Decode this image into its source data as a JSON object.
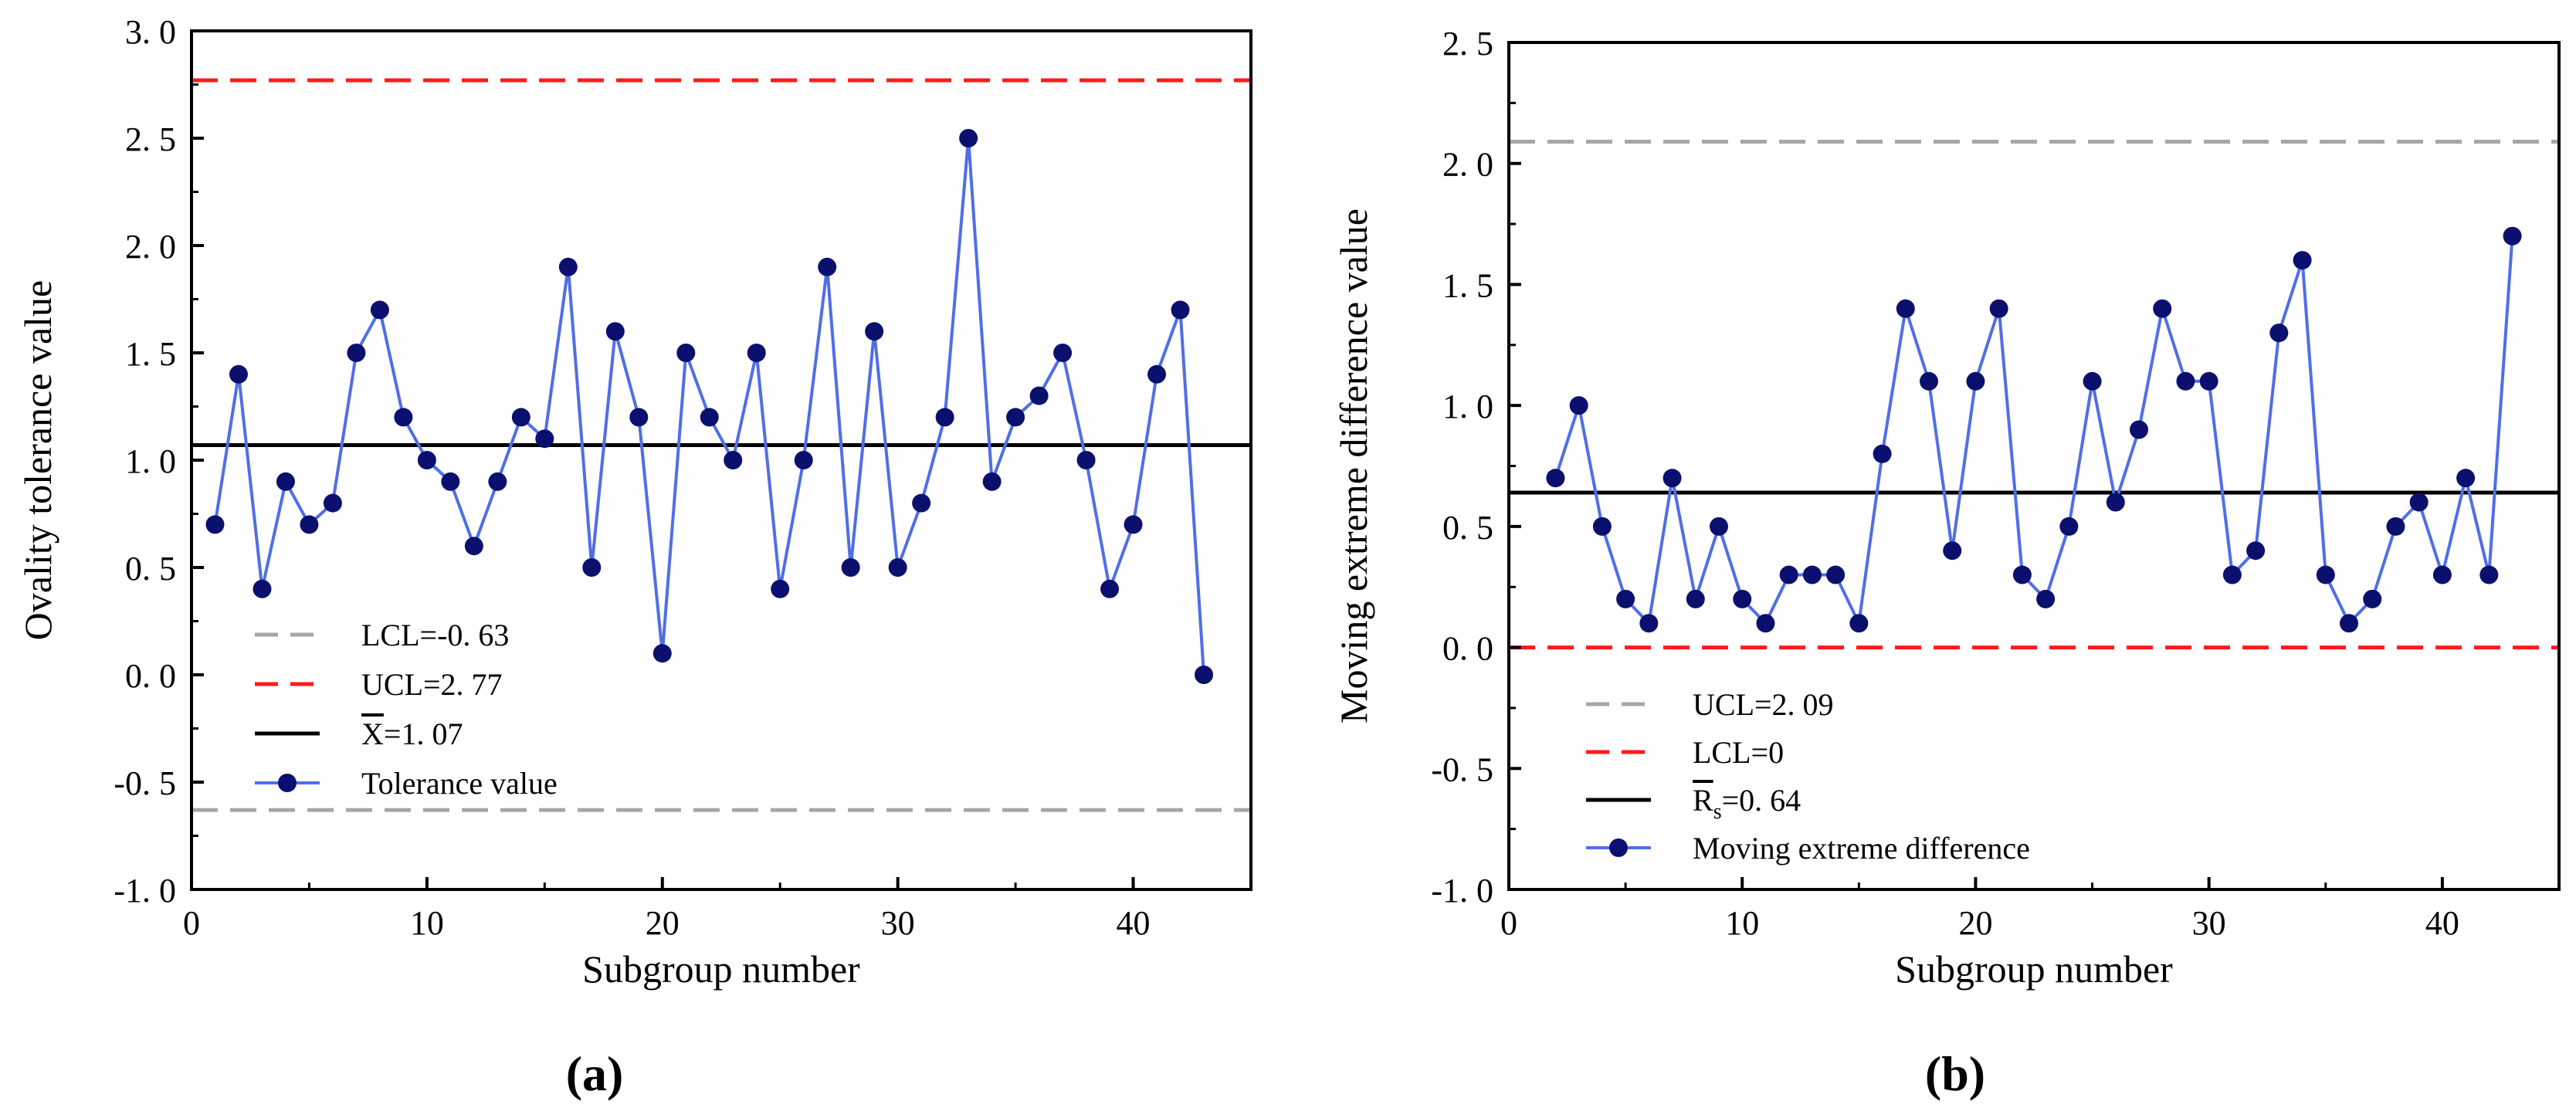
{
  "chart_data": [
    {
      "type": "line",
      "panel_label": "(a)",
      "xlabel": "Subgroup number",
      "ylabel": "Ovality tolerance value",
      "xlim": [
        0,
        45
      ],
      "ylim": [
        -1.0,
        3.0
      ],
      "x_ticks": [
        0,
        10,
        20,
        30,
        40
      ],
      "x_tick_labels": [
        "0",
        "10",
        "20",
        "30",
        "40"
      ],
      "y_ticks": [
        -1.0,
        -0.5,
        0.0,
        0.5,
        1.0,
        1.5,
        2.0,
        2.5,
        3.0
      ],
      "y_tick_labels": [
        "-1. 0",
        "-0. 5",
        "0. 0",
        "0. 5",
        "1. 0",
        "1. 5",
        "2. 0",
        "2. 5",
        "3. 0"
      ],
      "legend_position": "lower-left",
      "reference_lines": [
        {
          "name": "LCL",
          "label": "LCL=-0. 63",
          "value": -0.63,
          "color": "#a6a6a6",
          "dashed": true
        },
        {
          "name": "UCL",
          "label": "UCL=2. 77",
          "value": 2.77,
          "color": "#ff1a1a",
          "dashed": true
        },
        {
          "name": "mean",
          "label_symbol": "X",
          "label_rest": "=1. 07",
          "value": 1.07,
          "color": "#000000",
          "dashed": false
        }
      ],
      "series": [
        {
          "name": "Tolerance value",
          "line_color": "#4f6ee8",
          "marker_color": "#0b0f6e",
          "x": [
            1,
            2,
            3,
            4,
            5,
            6,
            7,
            8,
            9,
            10,
            11,
            12,
            13,
            14,
            15,
            16,
            17,
            18,
            19,
            20,
            21,
            22,
            23,
            24,
            25,
            26,
            27,
            28,
            29,
            30,
            31,
            32,
            33,
            34,
            35,
            36,
            37,
            38,
            39,
            40,
            41,
            42,
            43
          ],
          "y": [
            0.7,
            1.4,
            0.4,
            0.9,
            0.7,
            0.8,
            1.5,
            1.7,
            1.2,
            1.0,
            0.9,
            0.6,
            0.9,
            1.2,
            1.1,
            1.9,
            0.5,
            1.6,
            1.2,
            0.1,
            1.5,
            1.2,
            1.0,
            1.5,
            0.4,
            1.0,
            1.9,
            0.5,
            1.6,
            0.5,
            0.8,
            1.2,
            2.5,
            0.9,
            1.2,
            1.3,
            1.5,
            1.0,
            0.4,
            0.7,
            1.4,
            1.7,
            0.0
          ]
        }
      ]
    },
    {
      "type": "line",
      "panel_label": "(b)",
      "xlabel": "Subgroup number",
      "ylabel": "Moving extreme difference value",
      "xlim": [
        0,
        45
      ],
      "ylim": [
        -1.0,
        2.5
      ],
      "x_ticks": [
        0,
        10,
        20,
        30,
        40
      ],
      "x_tick_labels": [
        "0",
        "10",
        "20",
        "30",
        "40"
      ],
      "y_ticks": [
        -1.0,
        -0.5,
        0.0,
        0.5,
        1.0,
        1.5,
        2.0,
        2.5
      ],
      "y_tick_labels": [
        "-1. 0",
        "-0. 5",
        "0. 0",
        "0. 5",
        "1. 0",
        "1. 5",
        "2. 0",
        "2. 5"
      ],
      "legend_position": "lower-left",
      "reference_lines": [
        {
          "name": "UCL",
          "label": "UCL=2. 09",
          "value": 2.09,
          "color": "#a6a6a6",
          "dashed": true
        },
        {
          "name": "LCL",
          "label": "LCL=0",
          "value": 0.0,
          "color": "#ff1a1a",
          "dashed": true
        },
        {
          "name": "mean",
          "label_symbol": "R",
          "label_sub": "s",
          "label_rest": "=0. 64",
          "value": 0.64,
          "color": "#000000",
          "dashed": false
        }
      ],
      "series": [
        {
          "name": "Moving extreme difference",
          "line_color": "#4f6ee8",
          "marker_color": "#0b0f6e",
          "x": [
            2,
            3,
            4,
            5,
            6,
            7,
            8,
            9,
            10,
            11,
            12,
            13,
            14,
            15,
            16,
            17,
            18,
            19,
            20,
            21,
            22,
            23,
            24,
            25,
            26,
            27,
            28,
            29,
            30,
            31,
            32,
            33,
            34,
            35,
            36,
            37,
            38,
            39,
            40,
            41,
            42,
            43
          ],
          "y": [
            0.7,
            1.0,
            0.5,
            0.2,
            0.1,
            0.7,
            0.2,
            0.5,
            0.2,
            0.1,
            0.3,
            0.3,
            0.3,
            0.1,
            0.8,
            1.4,
            1.1,
            0.4,
            1.1,
            1.4,
            0.3,
            0.2,
            0.5,
            1.1,
            0.6,
            0.9,
            1.4,
            1.1,
            1.1,
            0.3,
            0.4,
            1.3,
            1.6,
            0.3,
            0.1,
            0.2,
            0.5,
            0.6,
            0.3,
            0.7,
            0.3,
            1.7
          ]
        }
      ]
    }
  ]
}
